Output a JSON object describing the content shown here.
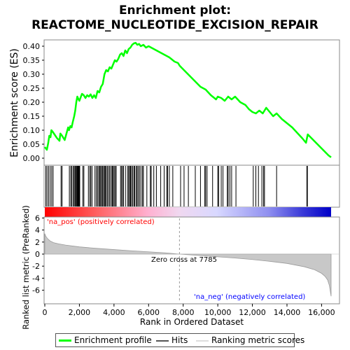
{
  "title_lines": [
    "Enrichment plot:",
    "REACTOME_NUCLEOTIDE_EXCISION_REPAIR"
  ],
  "chart_data": [
    {
      "type": "line",
      "name": "enrichment-profile",
      "ylabel": "Enrichment score (ES)",
      "xlim": [
        0,
        16800
      ],
      "ylim": [
        -0.01,
        0.42
      ],
      "yticks": [
        0.0,
        0.05,
        0.1,
        0.15,
        0.2,
        0.25,
        0.3,
        0.35,
        0.4
      ],
      "ytick_labels": [
        "0.00",
        "0.05",
        "0.10",
        "0.15",
        "0.20",
        "0.25",
        "0.30",
        "0.35",
        "0.40"
      ],
      "line_color": "#00ff00",
      "grid": false,
      "series": [
        {
          "name": "Enrichment profile",
          "x": [
            0,
            120,
            200,
            260,
            330,
            380,
            450,
            560,
            700,
            850,
            900,
            1000,
            1150,
            1350,
            1400,
            1480,
            1550,
            1620,
            1700,
            1760,
            1820,
            1880,
            1950,
            2000,
            2150,
            2250,
            2350,
            2450,
            2550,
            2650,
            2750,
            2850,
            2950,
            3050,
            3150,
            3250,
            3350,
            3450,
            3550,
            3650,
            3750,
            3850,
            3950,
            4050,
            4150,
            4250,
            4350,
            4450,
            4550,
            4650,
            4750,
            4850,
            4950,
            5050,
            5150,
            5250,
            5350,
            5450,
            5550,
            5700,
            5850,
            6000,
            6300,
            6600,
            6900,
            7200,
            7500,
            7700,
            7800,
            8200,
            8600,
            9000,
            9300,
            9600,
            9900,
            10000,
            10200,
            10400,
            10600,
            10800,
            11000,
            11300,
            11600,
            11800,
            12000,
            12200,
            12400,
            12600,
            12800,
            13000,
            13200,
            13400,
            13700,
            14000,
            14300,
            14600,
            14900,
            15100,
            15200,
            15600,
            16000,
            16400,
            16550
          ],
          "y": [
            0.04,
            0.03,
            0.055,
            0.08,
            0.075,
            0.1,
            0.095,
            0.085,
            0.072,
            0.062,
            0.088,
            0.08,
            0.065,
            0.11,
            0.1,
            0.115,
            0.11,
            0.13,
            0.15,
            0.17,
            0.2,
            0.22,
            0.21,
            0.205,
            0.23,
            0.225,
            0.215,
            0.225,
            0.22,
            0.228,
            0.215,
            0.225,
            0.215,
            0.24,
            0.235,
            0.255,
            0.265,
            0.3,
            0.315,
            0.31,
            0.325,
            0.32,
            0.335,
            0.35,
            0.345,
            0.355,
            0.37,
            0.375,
            0.365,
            0.385,
            0.375,
            0.39,
            0.395,
            0.405,
            0.41,
            0.412,
            0.405,
            0.408,
            0.4,
            0.405,
            0.395,
            0.4,
            0.39,
            0.38,
            0.37,
            0.36,
            0.345,
            0.34,
            0.33,
            0.305,
            0.28,
            0.255,
            0.245,
            0.225,
            0.21,
            0.22,
            0.215,
            0.205,
            0.22,
            0.21,
            0.22,
            0.2,
            0.19,
            0.175,
            0.165,
            0.16,
            0.17,
            0.16,
            0.18,
            0.165,
            0.15,
            0.16,
            0.14,
            0.125,
            0.11,
            0.09,
            0.07,
            0.055,
            0.085,
            0.06,
            0.035,
            0.01,
            0.003
          ]
        }
      ]
    },
    {
      "type": "hits",
      "name": "hits-barcode",
      "hit_ranks": [
        60,
        130,
        220,
        310,
        400,
        480,
        940,
        1000,
        1420,
        1500,
        1560,
        1640,
        1700,
        1750,
        1800,
        1850,
        1870,
        1900,
        1930,
        1960,
        1990,
        2020,
        2200,
        2260,
        2520,
        2600,
        2660,
        2730,
        2900,
        2980,
        3050,
        3120,
        3170,
        3230,
        3280,
        3340,
        3400,
        3450,
        3500,
        3560,
        3620,
        3700,
        3760,
        3840,
        3900,
        3950,
        4010,
        4070,
        4130,
        4380,
        4440,
        4500,
        4560,
        4680,
        4800,
        4850,
        4910,
        4960,
        5010,
        5080,
        5150,
        5200,
        5280,
        5340,
        5400,
        5480,
        5560,
        5650,
        5700,
        5900,
        6100,
        6150,
        6300,
        6450,
        6700,
        6900,
        7050,
        7100,
        7200,
        7400,
        7850,
        8050,
        8300,
        8700,
        9000,
        9250,
        9300,
        9380,
        9700,
        10000,
        10050,
        10200,
        10300,
        10550,
        10600,
        10700,
        10800,
        11050,
        12050,
        12200,
        12350,
        12550,
        12650,
        12700,
        13400,
        15150,
        15180
      ]
    },
    {
      "type": "area",
      "name": "ranked-list-metric",
      "ylabel": "Ranked list metric (PreRanked)",
      "xlabel": "Rank in Ordered Dataset",
      "xlim": [
        0,
        16800
      ],
      "ylim": [
        -8,
        6.4
      ],
      "yticks": [
        -6,
        -4,
        -2,
        0,
        2,
        4,
        6
      ],
      "ytick_labels": [
        "-6",
        "-4",
        "-2",
        "0",
        "2",
        "4",
        "6"
      ],
      "xticks": [
        0,
        2000,
        4000,
        6000,
        8000,
        10000,
        12000,
        14000,
        16000
      ],
      "xtick_labels": [
        "0",
        "2,000",
        "4,000",
        "6,000",
        "8,000",
        "10,000",
        "12,000",
        "14,000",
        "16,000"
      ],
      "metric_x": [
        0,
        50,
        150,
        300,
        500,
        800,
        1200,
        2000,
        3000,
        4000,
        5000,
        6000,
        7000,
        7785,
        9000,
        10000,
        11000,
        12000,
        13000,
        14000,
        15000,
        15600,
        16000,
        16200,
        16350,
        16450,
        16550
      ],
      "metric_y": [
        3.4,
        3.0,
        2.6,
        2.2,
        1.9,
        1.7,
        1.5,
        1.2,
        0.95,
        0.75,
        0.55,
        0.38,
        0.2,
        0.0,
        -0.25,
        -0.45,
        -0.65,
        -0.9,
        -1.2,
        -1.55,
        -2.1,
        -2.6,
        -3.2,
        -3.7,
        -4.3,
        -5.2,
        -7.0
      ],
      "zero_cross_label": "Zero cross at 7785",
      "zero_cross_rank": 7785,
      "pos_label": "'na_pos' (positively correlated)",
      "neg_label": "'na_neg' (negatively correlated)",
      "pos_color": "#ff0000",
      "neg_color": "#0000ff"
    }
  ],
  "legend": {
    "items": [
      {
        "label": "Enrichment profile",
        "color": "#00ff00"
      },
      {
        "label": "Hits",
        "color": "#000000"
      },
      {
        "label": "Ranking metric scores",
        "color": "#cccccc"
      }
    ]
  }
}
